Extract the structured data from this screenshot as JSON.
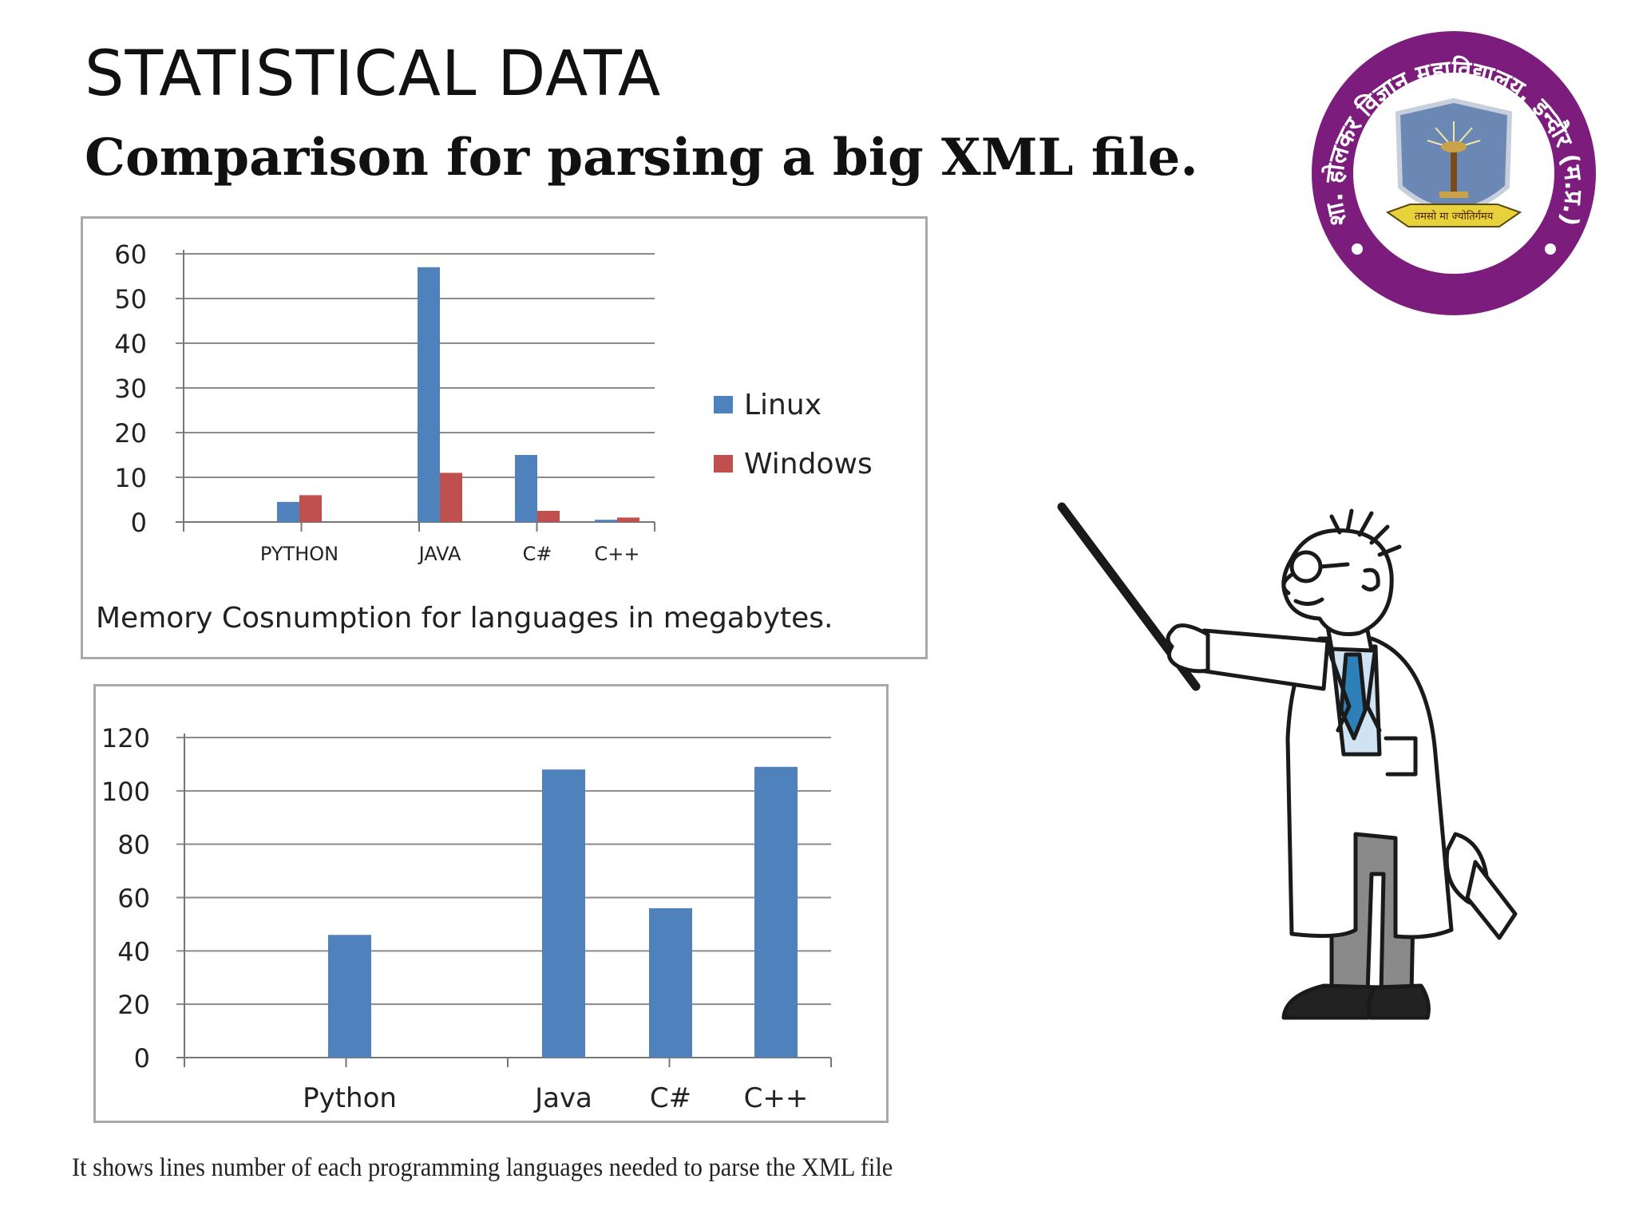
{
  "slide": {
    "title": "STATISTICAL DATA",
    "subtitle": "Comparison for parsing a big XML file.",
    "footnote": "It shows lines number of each programming languages needed to parse the XML file"
  },
  "logo": {
    "arc_text": "शा. होलकर विज्ञान महाविद्यालय, इन्दौर (म.प्र.)",
    "ribbon_text": "तमसो मा ज्योतिर्गमय",
    "colors": {
      "ring": "#7c1d7e",
      "shield": "#6b88b4",
      "ribbon": "#e8d23c"
    }
  },
  "chart_data": [
    {
      "type": "bar",
      "categories": [
        "PYTHON",
        "JAVA",
        "C#",
        "C++"
      ],
      "series": [
        {
          "name": "Linux",
          "color": "#4f81bd",
          "values": [
            4.5,
            57,
            15,
            0.5
          ]
        },
        {
          "name": "Windows",
          "color": "#c0504d",
          "values": [
            6,
            11,
            2.5,
            1
          ]
        }
      ],
      "ylim": [
        0,
        60
      ],
      "yticks": [
        "0",
        "10",
        "20",
        "30",
        "40",
        "50",
        "60"
      ],
      "grid": true,
      "legend": "right",
      "caption": "Memory Cosnumption for languages in megabytes."
    },
    {
      "type": "bar",
      "categories": [
        "Python",
        "Java",
        "C#",
        "C++"
      ],
      "series": [
        {
          "color": "#4f81bd",
          "values": [
            46,
            108,
            56,
            109
          ]
        }
      ],
      "ylim": [
        0,
        120
      ],
      "yticks": [
        "0",
        "20",
        "40",
        "60",
        "80",
        "100",
        "120"
      ],
      "grid": true,
      "legend": "none"
    }
  ]
}
